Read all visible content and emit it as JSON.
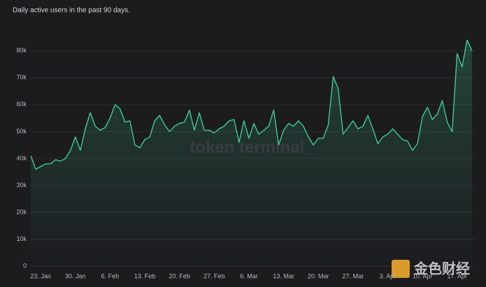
{
  "chart_data": {
    "type": "line",
    "title": "Daily active users in the past 90 days.",
    "watermark": "token terminal_",
    "logo_text": "金色财经",
    "categories": [
      null,
      null,
      "23. Jan",
      null,
      null,
      null,
      null,
      null,
      null,
      "30. Jan",
      null,
      null,
      null,
      null,
      null,
      null,
      "6. Feb",
      null,
      null,
      null,
      null,
      null,
      null,
      "13. Feb",
      null,
      null,
      null,
      null,
      null,
      null,
      "20. Feb",
      null,
      null,
      null,
      null,
      null,
      null,
      "27. Feb",
      null,
      null,
      null,
      null,
      null,
      null,
      "6. Mar",
      null,
      null,
      null,
      null,
      null,
      null,
      "13. Mar",
      null,
      null,
      null,
      null,
      null,
      null,
      "20. Mar",
      null,
      null,
      null,
      null,
      null,
      null,
      "27. Mar",
      null,
      null,
      null,
      null,
      null,
      null,
      "3. Apr",
      null,
      null,
      null,
      null,
      null,
      null,
      "10. Apr",
      null,
      null,
      null,
      null,
      null,
      null,
      "17. Apr",
      null,
      null,
      null
    ],
    "series": [
      {
        "name": "Daily active users",
        "color": "#3fd49e",
        "values": [
          41000,
          36000,
          37000,
          38000,
          38000,
          39500,
          39000,
          40000,
          43000,
          48000,
          43000,
          51000,
          57000,
          52000,
          50500,
          51500,
          55000,
          60000,
          58500,
          53500,
          54000,
          45000,
          44000,
          47000,
          48000,
          54000,
          56000,
          52500,
          50000,
          52000,
          53000,
          53500,
          58000,
          50500,
          57000,
          50500,
          50500,
          49500,
          51000,
          52000,
          54000,
          54500,
          46000,
          54000,
          47500,
          53000,
          49000,
          50500,
          52000,
          58000,
          45000,
          50500,
          53000,
          52000,
          54000,
          52000,
          48000,
          45000,
          47500,
          47500,
          52500,
          70500,
          66000,
          49000,
          51500,
          54000,
          51000,
          52000,
          56000,
          51000,
          45500,
          48000,
          49000,
          51000,
          49000,
          47000,
          46500,
          43000,
          45500,
          55500,
          59000,
          54500,
          56500,
          61500,
          53500,
          50000,
          79000,
          74000,
          84000,
          80000
        ]
      }
    ],
    "ylim": [
      0,
      88000
    ],
    "yticks": [
      0,
      {
        "value": 10000,
        "label": "10k"
      },
      {
        "value": 20000,
        "label": "20k"
      },
      {
        "value": 30000,
        "label": "30k"
      },
      {
        "value": 40000,
        "label": "40k"
      },
      {
        "value": 50000,
        "label": "50k"
      },
      {
        "value": 60000,
        "label": "60k"
      },
      {
        "value": 70000,
        "label": "70k"
      },
      {
        "value": 80000,
        "label": "80k"
      }
    ],
    "grid": true
  }
}
